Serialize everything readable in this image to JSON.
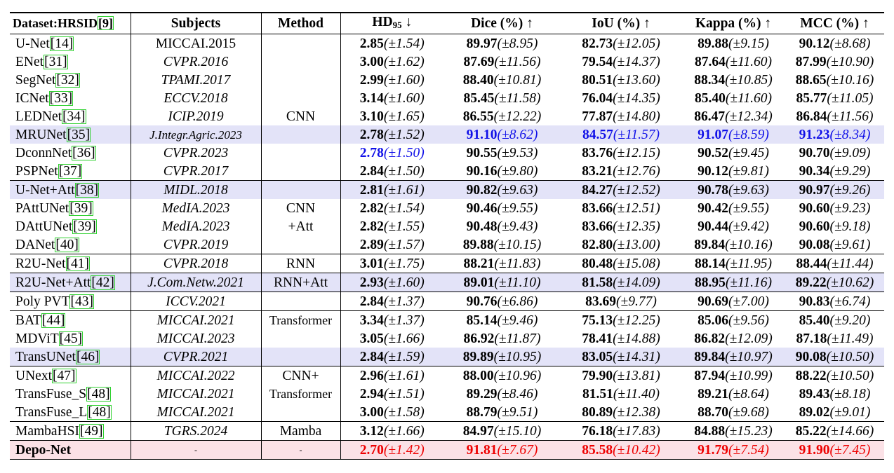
{
  "header": {
    "dataset": "Dataset:HRSID",
    "dataset_ref": "[9]",
    "subjects": "Subjects",
    "method": "Method",
    "hd": "HD",
    "hd_sub": "95",
    "hd_arrow": "↓",
    "dice": "Dice (%)",
    "iou": "IoU (%)",
    "kappa": "Kappa (%)",
    "mcc": "MCC (%)",
    "up_arrow": "↑"
  },
  "groups": [
    {
      "method": "CNN",
      "highlight": "none"
    },
    {
      "method": "CNN\n+Att"
    },
    {
      "method": "RNN"
    },
    {
      "method": "RNN+Att"
    },
    {
      "method": ""
    },
    {
      "method": "Transformer"
    },
    {
      "method": "CNN+\nTransformer"
    },
    {
      "method": "Mamba"
    },
    {
      "method": "-"
    }
  ],
  "rows": [
    {
      "model": "U-Net",
      "ref": "[14]",
      "subject": "MICCAI.2015",
      "italic": false,
      "hd": "2.85",
      "hd_sd": "(±1.54)",
      "dice": "89.97",
      "dice_sd": "(±8.95)",
      "iou": "82.73",
      "iou_sd": "(±12.05)",
      "kappa": "89.88",
      "kappa_sd": "(±9.15)",
      "mcc": "90.12",
      "mcc_sd": "(±8.68)"
    },
    {
      "model": "ENet",
      "ref": "[31]",
      "subject": "CVPR.2016",
      "italic": true,
      "hd": "3.00",
      "hd_sd": "(±1.62)",
      "dice": "87.69",
      "dice_sd": "(±11.56)",
      "iou": "79.54",
      "iou_sd": "(±14.37)",
      "kappa": "87.64",
      "kappa_sd": "(±11.60)",
      "mcc": "87.99",
      "mcc_sd": "(±10.90)"
    },
    {
      "model": "SegNet",
      "ref": "[32]",
      "subject": "TPAMI.2017",
      "italic": true,
      "hd": "2.99",
      "hd_sd": "(±1.60)",
      "dice": "88.40",
      "dice_sd": "(±10.81)",
      "iou": "80.51",
      "iou_sd": "(±13.60)",
      "kappa": "88.34",
      "kappa_sd": "(±10.85)",
      "mcc": "88.65",
      "mcc_sd": "(±10.16)"
    },
    {
      "model": "ICNet",
      "ref": "[33]",
      "subject": "ECCV.2018",
      "italic": true,
      "hd": "3.14",
      "hd_sd": "(±1.60)",
      "dice": "85.45",
      "dice_sd": "(±11.58)",
      "iou": "76.04",
      "iou_sd": "(±14.35)",
      "kappa": "85.40",
      "kappa_sd": "(±11.60)",
      "mcc": "85.77",
      "mcc_sd": "(±11.05)"
    },
    {
      "model": "LEDNet",
      "ref": "[34]",
      "subject": "ICIP.2019",
      "italic": true,
      "hd": "3.10",
      "hd_sd": "(±1.65)",
      "dice": "86.55",
      "dice_sd": "(±12.22)",
      "iou": "77.87",
      "iou_sd": "(±14.80)",
      "kappa": "86.47",
      "kappa_sd": "(±12.34)",
      "mcc": "86.84",
      "mcc_sd": "(±11.56)"
    },
    {
      "model": "MRUNet",
      "ref": "[35]",
      "subject": "J.Integr.Agric.2023",
      "italic": true,
      "hd": "2.78",
      "hd_sd": "(±1.52)",
      "dice": "91.10",
      "dice_sd": "(±8.62)",
      "iou": "84.57",
      "iou_sd": "(±11.57)",
      "kappa": "91.07",
      "kappa_sd": "(±8.59)",
      "mcc": "91.23",
      "mcc_sd": "(±8.34)"
    },
    {
      "model": "DconnNet",
      "ref": "[36]",
      "subject": "CVPR.2023",
      "italic": true,
      "hd": "2.78",
      "hd_sd": "(±1.50)",
      "dice": "90.55",
      "dice_sd": "(±9.53)",
      "iou": "83.76",
      "iou_sd": "(±12.15)",
      "kappa": "90.52",
      "kappa_sd": "(±9.45)",
      "mcc": "90.70",
      "mcc_sd": "(±9.09)"
    },
    {
      "model": "PSPNet",
      "ref": "[37]",
      "subject": "CVPR.2017",
      "italic": true,
      "hd": "2.84",
      "hd_sd": "(±1.50)",
      "dice": "90.16",
      "dice_sd": "(±9.80)",
      "iou": "83.21",
      "iou_sd": "(±12.76)",
      "kappa": "90.12",
      "kappa_sd": "(±9.81)",
      "mcc": "90.34",
      "mcc_sd": "(±9.29)"
    },
    {
      "model": "U-Net+Att",
      "ref": "[38]",
      "subject": "MIDL.2018",
      "italic": true,
      "hd": "2.81",
      "hd_sd": "(±1.61)",
      "dice": "90.82",
      "dice_sd": "(±9.63)",
      "iou": "84.27",
      "iou_sd": "(±12.52)",
      "kappa": "90.78",
      "kappa_sd": "(±9.63)",
      "mcc": "90.97",
      "mcc_sd": "(±9.26)"
    },
    {
      "model": "PAttUNet",
      "ref": "[39]",
      "subject": "MedIA.2023",
      "italic": true,
      "hd": "2.82",
      "hd_sd": "(±1.54)",
      "dice": "90.46",
      "dice_sd": "(±9.55)",
      "iou": "83.66",
      "iou_sd": "(±12.51)",
      "kappa": "90.42",
      "kappa_sd": "(±9.55)",
      "mcc": "90.60",
      "mcc_sd": "(±9.23)"
    },
    {
      "model": "DAttUNet",
      "ref": "[39]",
      "subject": "MedIA.2023",
      "italic": true,
      "hd": "2.82",
      "hd_sd": "(±1.55)",
      "dice": "90.48",
      "dice_sd": "(±9.43)",
      "iou": "83.66",
      "iou_sd": "(±12.35)",
      "kappa": "90.44",
      "kappa_sd": "(±9.42)",
      "mcc": "90.60",
      "mcc_sd": "(±9.18)"
    },
    {
      "model": "DANet",
      "ref": "[40]",
      "subject": "CVPR.2019",
      "italic": true,
      "hd": "2.89",
      "hd_sd": "(±1.57)",
      "dice": "89.88",
      "dice_sd": "(±10.15)",
      "iou": "82.80",
      "iou_sd": "(±13.00)",
      "kappa": "89.84",
      "kappa_sd": "(±10.16)",
      "mcc": "90.08",
      "mcc_sd": "(±9.61)"
    },
    {
      "model": "R2U-Net",
      "ref": "[41]",
      "subject": "CVPR.2018",
      "italic": true,
      "hd": "3.01",
      "hd_sd": "(±1.75)",
      "dice": "88.21",
      "dice_sd": "(±11.83)",
      "iou": "80.48",
      "iou_sd": "(±15.08)",
      "kappa": "88.14",
      "kappa_sd": "(±11.95)",
      "mcc": "88.44",
      "mcc_sd": "(±11.44)"
    },
    {
      "model": "R2U-Net+Att",
      "ref": "[42]",
      "subject": "J.Com.Netw.2021",
      "italic": true,
      "hd": "2.93",
      "hd_sd": "(±1.60)",
      "dice": "89.01",
      "dice_sd": "(±11.10)",
      "iou": "81.58",
      "iou_sd": "(±14.09)",
      "kappa": "88.95",
      "kappa_sd": "(±11.16)",
      "mcc": "89.22",
      "mcc_sd": "(±10.62)"
    },
    {
      "model": "Poly PVT",
      "ref": "[43]",
      "subject": "ICCV.2021",
      "italic": true,
      "hd": "2.84",
      "hd_sd": "(±1.37)",
      "dice": "90.76",
      "dice_sd": "(±6.86)",
      "iou": "83.69",
      "iou_sd": "(±9.77)",
      "kappa": "90.69",
      "kappa_sd": "(±7.00)",
      "mcc": "90.83",
      "mcc_sd": "(±6.74)"
    },
    {
      "model": "BAT",
      "ref": "[44]",
      "subject": "MICCAI.2021",
      "italic": true,
      "hd": "3.34",
      "hd_sd": "(±1.37)",
      "dice": "85.14",
      "dice_sd": "(±9.46)",
      "iou": "75.13",
      "iou_sd": "(±12.25)",
      "kappa": "85.06",
      "kappa_sd": "(±9.56)",
      "mcc": "85.40",
      "mcc_sd": "(±9.20)"
    },
    {
      "model": "MDViT",
      "ref": "[45]",
      "subject": "MICCAI.2023",
      "italic": true,
      "hd": "3.05",
      "hd_sd": "(±1.66)",
      "dice": "86.92",
      "dice_sd": "(±11.87)",
      "iou": "78.41",
      "iou_sd": "(±14.88)",
      "kappa": "86.82",
      "kappa_sd": "(±12.09)",
      "mcc": "87.18",
      "mcc_sd": "(±11.49)"
    },
    {
      "model": "TransUNet",
      "ref": "[46]",
      "subject": "CVPR.2021",
      "italic": true,
      "hd": "2.84",
      "hd_sd": "(±1.59)",
      "dice": "89.89",
      "dice_sd": "(±10.95)",
      "iou": "83.05",
      "iou_sd": "(±14.31)",
      "kappa": "89.84",
      "kappa_sd": "(±10.97)",
      "mcc": "90.08",
      "mcc_sd": "(±10.50)"
    },
    {
      "model": "UNext",
      "ref": "[47]",
      "subject": "MICCAI.2022",
      "italic": true,
      "hd": "2.96",
      "hd_sd": "(±1.61)",
      "dice": "88.00",
      "dice_sd": "(±10.96)",
      "iou": "79.90",
      "iou_sd": "(±13.81)",
      "kappa": "87.94",
      "kappa_sd": "(±10.99)",
      "mcc": "88.22",
      "mcc_sd": "(±10.50)"
    },
    {
      "model": "TransFuse_S",
      "ref": "[48]",
      "subject": "MICCAI.2021",
      "italic": true,
      "hd": "2.94",
      "hd_sd": "(±1.51)",
      "dice": "89.29",
      "dice_sd": "(±8.46)",
      "iou": "81.51",
      "iou_sd": "(±11.40)",
      "kappa": "89.21",
      "kappa_sd": "(±8.64)",
      "mcc": "89.43",
      "mcc_sd": "(±8.18)"
    },
    {
      "model": "TransFuse_L",
      "ref": "[48]",
      "subject": "MICCAI.2021",
      "italic": true,
      "hd": "3.00",
      "hd_sd": "(±1.58)",
      "dice": "88.79",
      "dice_sd": "(±9.51)",
      "iou": "80.89",
      "iou_sd": "(±12.38)",
      "kappa": "88.70",
      "kappa_sd": "(±9.68)",
      "mcc": "89.02",
      "mcc_sd": "(±9.01)"
    },
    {
      "model": "MambaHSI",
      "ref": "[49]",
      "subject": "TGRS.2024",
      "italic": true,
      "hd": "3.12",
      "hd_sd": "(±1.66)",
      "dice": "84.97",
      "dice_sd": "(±15.10)",
      "iou": "76.18",
      "iou_sd": "(±17.83)",
      "kappa": "84.88",
      "kappa_sd": "(±15.23)",
      "mcc": "85.22",
      "mcc_sd": "(±14.66)"
    },
    {
      "model": "Depo-Net",
      "ref": "",
      "subject": "-",
      "italic": false,
      "hd": "2.70",
      "hd_sd": "(±1.42)",
      "dice": "91.81",
      "dice_sd": "(±7.67)",
      "iou": "85.58",
      "iou_sd": "(±10.42)",
      "kappa": "91.79",
      "kappa_sd": "(±7.54)",
      "mcc": "91.90",
      "mcc_sd": "(±7.45)"
    }
  ],
  "method_labels": {
    "cnn": "CNN",
    "cnn_att_1": "CNN",
    "cnn_att_2": "+Att",
    "rnn": "RNN",
    "rnn_att": "RNN+Att",
    "transformer": "Transformer",
    "cnn_trans_1": "CNN+",
    "cnn_trans_2": "Transformer",
    "mamba": "Mamba",
    "ours": "-"
  },
  "colors": {
    "best": "#ee0000",
    "second": "#1010e8",
    "row_blue": "#e3e3f8",
    "row_red": "#fbe1e6",
    "ref_box": "#2ed12e"
  }
}
